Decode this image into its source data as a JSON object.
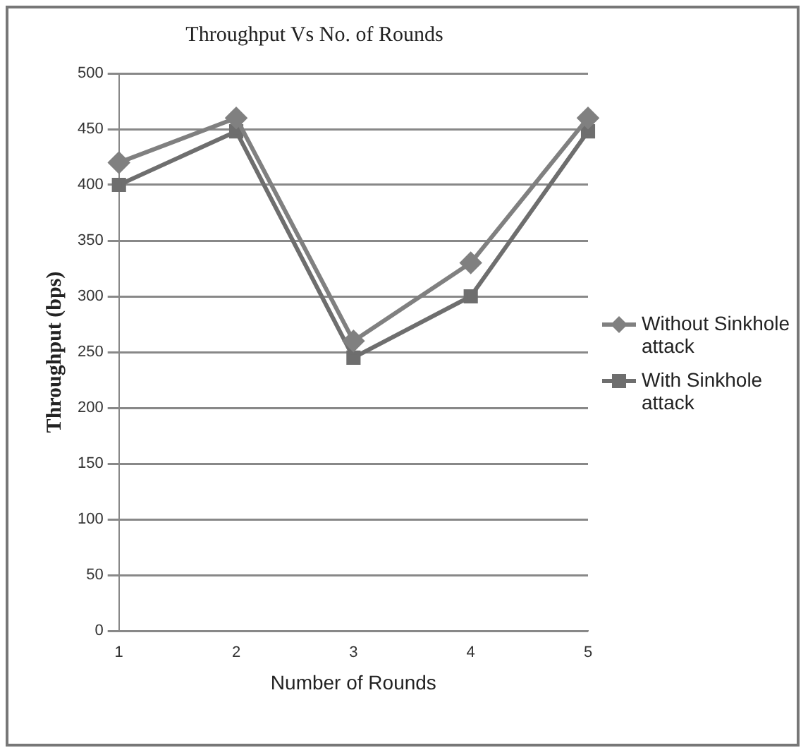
{
  "chart_data": {
    "type": "line",
    "title": "Throughput Vs No. of Rounds",
    "xlabel": "Number of Rounds",
    "ylabel": "Throughput (bps)",
    "categories": [
      "1",
      "2",
      "3",
      "4",
      "5"
    ],
    "series": [
      {
        "name": "Without Sinkhole attack",
        "color": "#808080",
        "marker": "diamond",
        "values": [
          420,
          460,
          260,
          330,
          460
        ]
      },
      {
        "name": "With Sinkhole attack",
        "color": "#6e6e6e",
        "marker": "square",
        "values": [
          400,
          448,
          245,
          300,
          448
        ]
      }
    ],
    "ylim": [
      0,
      500
    ],
    "yticks": [
      0,
      50,
      100,
      150,
      200,
      250,
      300,
      350,
      400,
      450,
      500
    ],
    "grid": "y",
    "legend": "right",
    "line_style": "solid"
  }
}
